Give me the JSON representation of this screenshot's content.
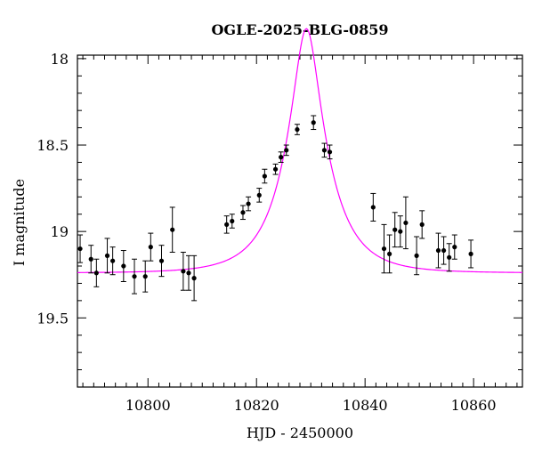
{
  "chart_data": {
    "type": "scatter",
    "title": "OGLE-2025-BLG-0859",
    "xlabel": "HJD - 2450000",
    "ylabel": "I magnitude",
    "xlim": [
      10787,
      10869
    ],
    "ylim": [
      19.9,
      17.98
    ],
    "y_inverted": true,
    "xticks": [
      10800,
      10820,
      10840,
      10860
    ],
    "yticks": [
      18,
      18.5,
      19,
      19.5
    ],
    "xtick_labels": [
      "10800",
      "10820",
      "10840",
      "10860"
    ],
    "ytick_labels": [
      "18",
      "18.5",
      "19",
      "19.5"
    ],
    "grid": false,
    "colors": {
      "points": "#000000",
      "model": "#ff00ff",
      "frame": "#000000"
    },
    "series": [
      {
        "kind": "observations",
        "points": [
          {
            "x": 10787.5,
            "y": 19.1,
            "err": 0.08
          },
          {
            "x": 10789.5,
            "y": 19.16,
            "err": 0.08
          },
          {
            "x": 10790.5,
            "y": 19.24,
            "err": 0.08
          },
          {
            "x": 10792.5,
            "y": 19.14,
            "err": 0.1
          },
          {
            "x": 10793.5,
            "y": 19.17,
            "err": 0.08
          },
          {
            "x": 10795.5,
            "y": 19.2,
            "err": 0.09
          },
          {
            "x": 10797.5,
            "y": 19.26,
            "err": 0.1
          },
          {
            "x": 10799.5,
            "y": 19.26,
            "err": 0.09
          },
          {
            "x": 10800.5,
            "y": 19.09,
            "err": 0.08
          },
          {
            "x": 10802.5,
            "y": 19.17,
            "err": 0.09
          },
          {
            "x": 10804.5,
            "y": 18.99,
            "err": 0.13
          },
          {
            "x": 10806.5,
            "y": 19.23,
            "err": 0.11
          },
          {
            "x": 10807.5,
            "y": 19.24,
            "err": 0.1
          },
          {
            "x": 10808.5,
            "y": 19.27,
            "err": 0.13
          },
          {
            "x": 10814.5,
            "y": 18.96,
            "err": 0.05
          },
          {
            "x": 10815.5,
            "y": 18.94,
            "err": 0.04
          },
          {
            "x": 10817.5,
            "y": 18.89,
            "err": 0.04
          },
          {
            "x": 10818.5,
            "y": 18.84,
            "err": 0.04
          },
          {
            "x": 10820.5,
            "y": 18.79,
            "err": 0.04
          },
          {
            "x": 10821.5,
            "y": 18.68,
            "err": 0.04
          },
          {
            "x": 10823.5,
            "y": 18.64,
            "err": 0.03
          },
          {
            "x": 10824.5,
            "y": 18.57,
            "err": 0.03
          },
          {
            "x": 10825.5,
            "y": 18.53,
            "err": 0.03
          },
          {
            "x": 10827.5,
            "y": 18.41,
            "err": 0.03
          },
          {
            "x": 10830.5,
            "y": 18.37,
            "err": 0.04
          },
          {
            "x": 10832.5,
            "y": 18.53,
            "err": 0.04
          },
          {
            "x": 10833.5,
            "y": 18.54,
            "err": 0.04
          },
          {
            "x": 10841.5,
            "y": 18.86,
            "err": 0.08
          },
          {
            "x": 10843.5,
            "y": 19.1,
            "err": 0.14
          },
          {
            "x": 10844.5,
            "y": 19.13,
            "err": 0.11
          },
          {
            "x": 10845.5,
            "y": 18.99,
            "err": 0.1
          },
          {
            "x": 10846.5,
            "y": 19.0,
            "err": 0.09
          },
          {
            "x": 10847.5,
            "y": 18.95,
            "err": 0.15
          },
          {
            "x": 10849.5,
            "y": 19.14,
            "err": 0.11
          },
          {
            "x": 10850.5,
            "y": 18.96,
            "err": 0.08
          },
          {
            "x": 10853.5,
            "y": 19.11,
            "err": 0.1
          },
          {
            "x": 10854.5,
            "y": 19.11,
            "err": 0.08
          },
          {
            "x": 10855.5,
            "y": 19.15,
            "err": 0.08
          },
          {
            "x": 10856.5,
            "y": 19.09,
            "err": 0.07
          },
          {
            "x": 10859.5,
            "y": 19.13,
            "err": 0.08
          }
        ]
      },
      {
        "kind": "model",
        "model": "Paczynski point-lens",
        "params": {
          "t0": 10829.2,
          "u0": 0.28,
          "tE": 7.8,
          "I_base": 19.24
        },
        "x_range": [
          10787,
          10869
        ]
      }
    ]
  }
}
